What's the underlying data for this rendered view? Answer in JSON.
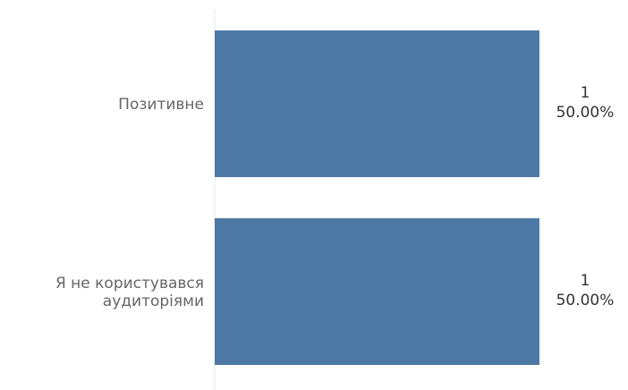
{
  "chart_data": {
    "type": "bar",
    "orientation": "horizontal",
    "categories": [
      [
        "Позитивне"
      ],
      [
        "Я не користувався",
        "аудиторіями"
      ]
    ],
    "values": [
      1,
      1
    ],
    "value_labels": [
      "1",
      "1"
    ],
    "percent_labels": [
      "50.00%",
      "50.00%"
    ],
    "xlim": [
      0,
      1
    ],
    "bar_color": "#4e79a7",
    "axis_line_color": "#e6e6e6",
    "grid": false,
    "legend": "none",
    "title": "",
    "xlabel": "",
    "ylabel": ""
  }
}
